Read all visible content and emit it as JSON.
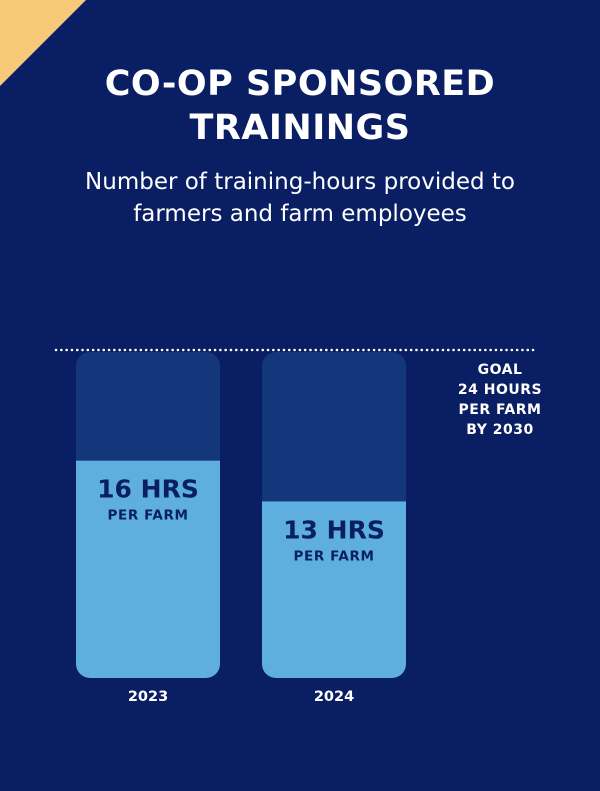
{
  "header": {
    "title_line1": "CO-OP SPONSORED",
    "title_line2": "TRAININGS",
    "subtitle_line1": "Number of training-hours provided to",
    "subtitle_line2": "farmers and farm employees"
  },
  "goal": {
    "lines": [
      "GOAL",
      "24 HOURS",
      "PER FARM",
      "BY 2030"
    ]
  },
  "colors": {
    "background": "#0a1f63",
    "corner_accent": "#f9c97a",
    "bar_track": "#14367a",
    "bar_fill": "#5eaedf",
    "bar_text": "#0a1f63",
    "text": "#ffffff"
  },
  "chart_data": {
    "type": "bar",
    "title": "CO-OP SPONSORED TRAININGS",
    "subtitle": "Number of training-hours provided to farmers and farm employees",
    "categories": [
      "2023",
      "2024"
    ],
    "values": [
      16,
      13
    ],
    "units": "HRS",
    "value_labels": [
      "16 HRS",
      "13 HRS"
    ],
    "value_sublabels": [
      "PER FARM",
      "PER FARM"
    ],
    "target": 24,
    "target_label": "GOAL 24 HOURS PER FARM BY 2030",
    "ylim": [
      0,
      24
    ],
    "grid": false
  }
}
